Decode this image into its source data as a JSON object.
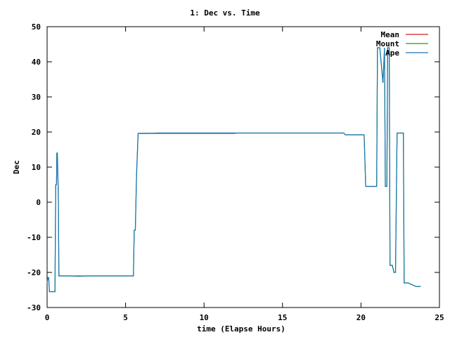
{
  "chart_data": {
    "type": "line",
    "title": "1: Dec vs. Time",
    "xlabel": "time (Elapse Hours)",
    "ylabel": "Dec",
    "xlim": [
      0,
      25
    ],
    "ylim": [
      -30,
      50
    ],
    "xticks": [
      0,
      5,
      10,
      15,
      20,
      25
    ],
    "yticks": [
      -30,
      -20,
      -10,
      0,
      10,
      20,
      30,
      40,
      50
    ],
    "legend_placement": "top-right",
    "grid": false,
    "colors": {
      "Mean": "#d81e1e",
      "Mount": "#16a216",
      "Ape": "#1f73b8"
    },
    "series": [
      {
        "name": "Mean",
        "x": [
          5.9,
          12.0
        ],
        "y": [
          19.6,
          19.6
        ]
      },
      {
        "name": "Mount",
        "x": [
          0.0,
          0.05,
          0.1,
          0.15,
          0.2,
          0.25,
          0.3,
          0.5,
          0.55,
          0.6,
          0.62,
          0.65,
          0.7,
          0.72,
          0.75,
          0.8,
          0.82,
          0.85,
          1.0,
          1.5,
          2.0,
          2.5,
          3.0,
          3.5,
          4.0,
          4.5,
          5.0,
          5.3,
          5.5,
          5.55,
          5.62,
          5.7,
          5.8,
          5.9,
          6.0,
          6.5,
          7.0,
          8.0,
          9.0,
          10.0,
          11.0,
          12.0,
          13.0,
          14.0,
          15.0,
          16.0,
          17.0,
          18.0,
          18.9,
          19.0,
          20.0,
          20.2,
          20.25,
          20.3,
          20.35,
          21.0,
          21.05,
          21.1,
          21.2,
          21.4,
          21.5,
          21.55,
          21.6,
          21.65,
          21.7,
          21.75,
          21.8,
          21.85,
          21.9,
          22.0,
          22.1,
          22.2,
          22.3,
          22.45,
          22.5,
          22.55,
          22.6,
          22.65,
          22.7,
          22.75,
          22.8,
          22.9,
          23.0,
          23.5,
          23.6,
          23.8
        ],
        "y": [
          -23.0,
          -21.5,
          -21.5,
          -25.5,
          -25.5,
          -25.5,
          -25.5,
          -25.5,
          5.0,
          5.0,
          14.0,
          14.0,
          5.0,
          0.0,
          -21.0,
          -21.0,
          -21.0,
          -21.0,
          -21.0,
          -21.0,
          -21.1,
          -21.0,
          -21.0,
          -21.0,
          -21.0,
          -21.0,
          -21.0,
          -21.0,
          -21.0,
          -8.0,
          -8.0,
          8.0,
          19.6,
          19.6,
          19.6,
          19.6,
          19.7,
          19.7,
          19.7,
          19.7,
          19.7,
          19.7,
          19.7,
          19.7,
          19.7,
          19.7,
          19.7,
          19.7,
          19.7,
          19.2,
          19.2,
          19.2,
          12.0,
          4.5,
          4.5,
          4.5,
          44.0,
          44.0,
          44.0,
          34.0,
          44.0,
          4.5,
          4.5,
          4.5,
          44.0,
          44.0,
          44.0,
          -18.0,
          -18.0,
          -18.0,
          -20.0,
          -20.0,
          19.7,
          19.7,
          19.7,
          19.7,
          19.7,
          19.7,
          19.7,
          -23.0,
          -23.0,
          -23.0,
          -23.0,
          -24.0,
          -24.0,
          -24.0
        ]
      },
      {
        "name": "Ape",
        "x": [
          0.0,
          0.05,
          0.1,
          0.15,
          0.2,
          0.25,
          0.3,
          0.5,
          0.55,
          0.6,
          0.62,
          0.65,
          0.7,
          0.72,
          0.75,
          0.8,
          0.82,
          0.85,
          1.0,
          1.5,
          2.0,
          2.5,
          3.0,
          3.5,
          4.0,
          4.5,
          5.0,
          5.3,
          5.5,
          5.55,
          5.62,
          5.7,
          5.8,
          5.9,
          6.0,
          6.5,
          7.0,
          8.0,
          9.0,
          10.0,
          11.0,
          12.0,
          13.0,
          14.0,
          15.0,
          16.0,
          17.0,
          18.0,
          18.9,
          19.0,
          20.0,
          20.2,
          20.25,
          20.3,
          20.35,
          21.0,
          21.05,
          21.1,
          21.2,
          21.4,
          21.5,
          21.55,
          21.6,
          21.65,
          21.7,
          21.75,
          21.8,
          21.85,
          21.9,
          22.0,
          22.1,
          22.2,
          22.3,
          22.45,
          22.5,
          22.55,
          22.6,
          22.65,
          22.7,
          22.75,
          22.8,
          22.9,
          23.0,
          23.5,
          23.6,
          23.8
        ],
        "y": [
          -23.0,
          -21.5,
          -21.5,
          -25.5,
          -25.5,
          -25.5,
          -25.5,
          -25.5,
          5.0,
          5.0,
          14.0,
          14.0,
          5.0,
          0.0,
          -21.0,
          -21.0,
          -21.0,
          -21.0,
          -21.0,
          -21.0,
          -21.0,
          -21.0,
          -21.0,
          -21.0,
          -21.0,
          -21.0,
          -21.0,
          -21.0,
          -21.0,
          -8.0,
          -8.0,
          8.0,
          19.6,
          19.6,
          19.6,
          19.6,
          19.7,
          19.7,
          19.7,
          19.7,
          19.7,
          19.7,
          19.7,
          19.7,
          19.7,
          19.7,
          19.7,
          19.7,
          19.7,
          19.2,
          19.2,
          19.2,
          12.0,
          4.5,
          4.5,
          4.5,
          44.0,
          44.0,
          44.0,
          34.0,
          44.0,
          4.5,
          4.5,
          4.5,
          44.0,
          44.0,
          44.0,
          -18.0,
          -18.0,
          -18.0,
          -20.0,
          -20.0,
          19.7,
          19.7,
          19.7,
          19.7,
          19.7,
          19.7,
          19.7,
          -23.0,
          -23.0,
          -23.0,
          -23.0,
          -24.0,
          -24.0,
          -24.0
        ]
      }
    ]
  }
}
